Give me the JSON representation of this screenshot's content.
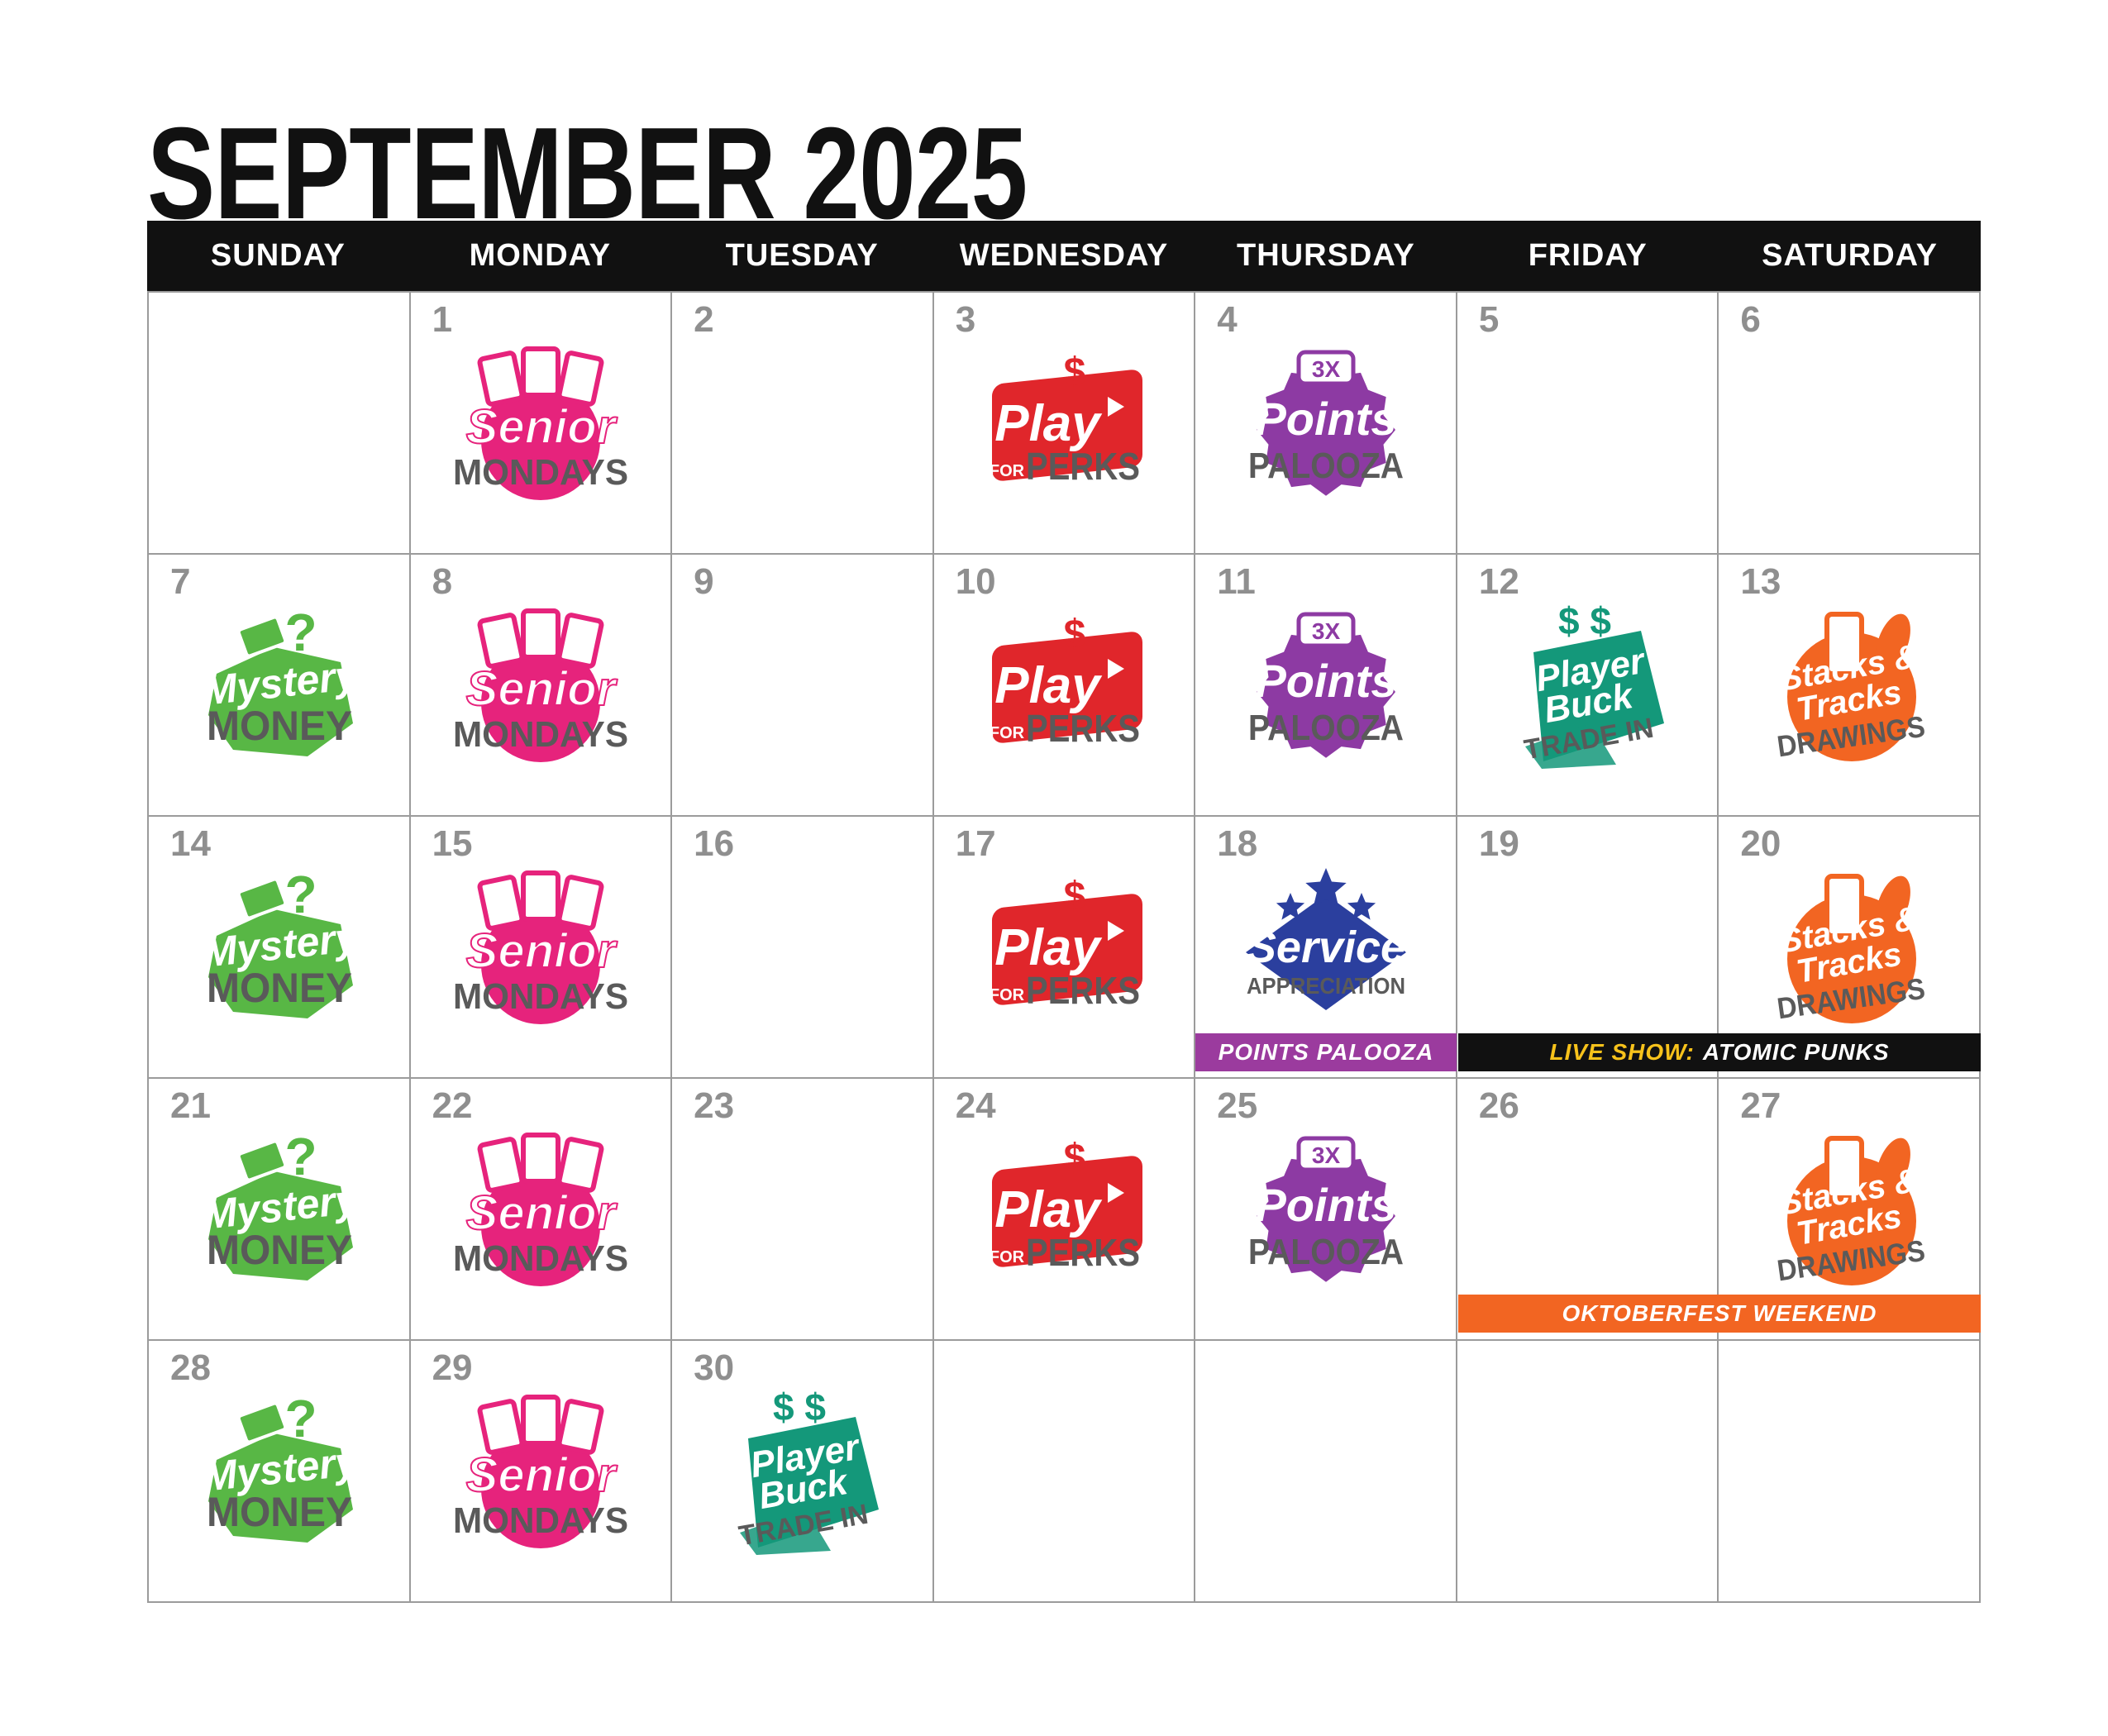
{
  "header": {
    "title": "SEPTEMBER 2025"
  },
  "weekdays": [
    "SUNDAY",
    "MONDAY",
    "TUESDAY",
    "WEDNESDAY",
    "THURSDAY",
    "FRIDAY",
    "SATURDAY"
  ],
  "colors": {
    "senior": "#e6237c",
    "perks": "#e0262b",
    "points": "#8d3aa3",
    "mystery": "#58b745",
    "trade": "#14987a",
    "stacks": "#f26522",
    "service": "#2b3f9e",
    "text_gray": "#5a5a5a",
    "banner_points": "#9b3b9e",
    "banner_live": "#111111",
    "banner_oktober": "#f26522",
    "banner_accent": "#f7c21b"
  },
  "logos": {
    "senior": {
      "line1": "Senior",
      "line2": "MONDAYS",
      "icon": "cards-icon"
    },
    "perks": {
      "line1": "Play",
      "line2": "PERKS",
      "line3": "FOR",
      "icon": "play-dollar-icon"
    },
    "points": {
      "badge": "3X",
      "line1": "Points",
      "line2": "PALOOZA",
      "icon": "starburst-icon"
    },
    "mystery": {
      "line1": "Mystery",
      "line2": "MONEY",
      "icon": "money-question-icon"
    },
    "trade": {
      "line1": "Player",
      "line2": "Buck",
      "line3": "TRADE IN",
      "icon": "dollar-signs-icon"
    },
    "stacks": {
      "line1": "Stacks &",
      "line2": "Tracks",
      "line3": "DRAWINGS",
      "icon": "beer-pretzel-icon"
    },
    "service": {
      "line1": "Service",
      "line2": "APPRECIATION",
      "icon": "stars-icon"
    }
  },
  "weeks": [
    [
      {
        "day": "",
        "event": ""
      },
      {
        "day": "1",
        "event": "senior"
      },
      {
        "day": "2",
        "event": ""
      },
      {
        "day": "3",
        "event": "perks"
      },
      {
        "day": "4",
        "event": "points"
      },
      {
        "day": "5",
        "event": ""
      },
      {
        "day": "6",
        "event": ""
      }
    ],
    [
      {
        "day": "7",
        "event": "mystery"
      },
      {
        "day": "8",
        "event": "senior"
      },
      {
        "day": "9",
        "event": ""
      },
      {
        "day": "10",
        "event": "perks"
      },
      {
        "day": "11",
        "event": "points"
      },
      {
        "day": "12",
        "event": "trade"
      },
      {
        "day": "13",
        "event": "stacks"
      }
    ],
    [
      {
        "day": "14",
        "event": "mystery"
      },
      {
        "day": "15",
        "event": "senior"
      },
      {
        "day": "16",
        "event": ""
      },
      {
        "day": "17",
        "event": "perks"
      },
      {
        "day": "18",
        "event": "service"
      },
      {
        "day": "19",
        "event": ""
      },
      {
        "day": "20",
        "event": "stacks"
      }
    ],
    [
      {
        "day": "21",
        "event": "mystery"
      },
      {
        "day": "22",
        "event": "senior"
      },
      {
        "day": "23",
        "event": ""
      },
      {
        "day": "24",
        "event": "perks"
      },
      {
        "day": "25",
        "event": "points"
      },
      {
        "day": "26",
        "event": ""
      },
      {
        "day": "27",
        "event": "stacks"
      }
    ],
    [
      {
        "day": "28",
        "event": "mystery"
      },
      {
        "day": "29",
        "event": "senior"
      },
      {
        "day": "30",
        "event": "trade"
      },
      {
        "day": "",
        "event": ""
      },
      {
        "day": "",
        "event": ""
      },
      {
        "day": "",
        "event": ""
      },
      {
        "day": "",
        "event": ""
      }
    ]
  ],
  "banners": {
    "points_palooza": {
      "text": "POINTS PALOOZA"
    },
    "live_show": {
      "label": "LIVE SHOW:",
      "text": "ATOMIC PUNKS"
    },
    "oktoberfest": {
      "text": "OKTOBERFEST WEEKEND"
    }
  }
}
